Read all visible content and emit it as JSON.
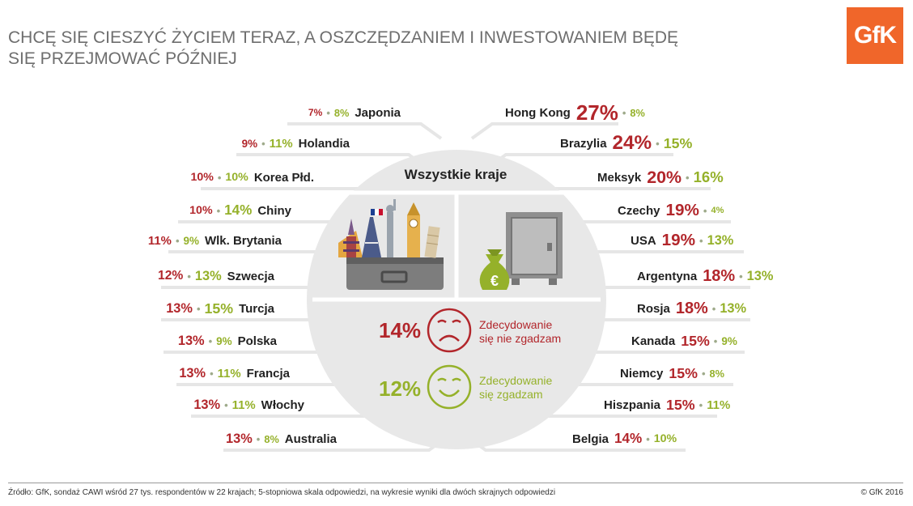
{
  "title_line1": "CHCĘ SIĘ CIESZYĆ ŻYCIEM TERAZ, A OSZCZĘDZANIEM I INWESTOWANIEM BĘDĘ",
  "title_line2": "SIĘ PRZEJMOWAĆ PÓŹNIEJ",
  "logo_text": "GfK",
  "center_title": "Wszystkie kraje",
  "legend": {
    "disagree_pct": "14%",
    "disagree_label_1": "Zdecydowanie",
    "disagree_label_2": "się nie zgadzam",
    "agree_pct": "12%",
    "agree_label_1": "Zdecydowanie",
    "agree_label_2": "się zgadzam"
  },
  "colors": {
    "disagree": "#b2262b",
    "agree": "#95b12a",
    "circle": "#e8e8e8"
  },
  "icons": [
    "suitcase-landmarks-icon",
    "safe-icon",
    "euro-money-bag-icon",
    "sad-face-icon",
    "happy-face-icon"
  ],
  "footer": {
    "source": "Źródło: GfK, sondaż CAWI wśród 27 tys. respondentów w 22 krajach; 5-stopniowa skala odpowiedzi, na wykresie wyniki dla dwóch skrajnych odpowiedzi",
    "copyright": "© GfK 2016"
  },
  "chart_data": {
    "type": "table",
    "columns": [
      "Zdecydowanie się nie zgadzam",
      "Zdecydowanie się zgadzam"
    ],
    "left": [
      {
        "country": "Japonia",
        "disagree": 7,
        "agree": 8
      },
      {
        "country": "Holandia",
        "disagree": 9,
        "agree": 11
      },
      {
        "country": "Korea Płd.",
        "disagree": 10,
        "agree": 10
      },
      {
        "country": "Chiny",
        "disagree": 10,
        "agree": 14
      },
      {
        "country": "Wlk. Brytania",
        "disagree": 11,
        "agree": 9
      },
      {
        "country": "Szwecja",
        "disagree": 12,
        "agree": 13
      },
      {
        "country": "Turcja",
        "disagree": 13,
        "agree": 15
      },
      {
        "country": "Polska",
        "disagree": 13,
        "agree": 9
      },
      {
        "country": "Francja",
        "disagree": 13,
        "agree": 11
      },
      {
        "country": "Włochy",
        "disagree": 13,
        "agree": 11
      },
      {
        "country": "Australia",
        "disagree": 13,
        "agree": 8
      }
    ],
    "right": [
      {
        "country": "Hong Kong",
        "disagree": 27,
        "agree": 8
      },
      {
        "country": "Brazylia",
        "disagree": 24,
        "agree": 15
      },
      {
        "country": "Meksyk",
        "disagree": 20,
        "agree": 16
      },
      {
        "country": "Czechy",
        "disagree": 19,
        "agree": 4
      },
      {
        "country": "USA",
        "disagree": 19,
        "agree": 13
      },
      {
        "country": "Argentyna",
        "disagree": 18,
        "agree": 13
      },
      {
        "country": "Rosja",
        "disagree": 18,
        "agree": 13
      },
      {
        "country": "Kanada",
        "disagree": 15,
        "agree": 9
      },
      {
        "country": "Niemcy",
        "disagree": 15,
        "agree": 8
      },
      {
        "country": "Hiszpania",
        "disagree": 15,
        "agree": 11
      },
      {
        "country": "Belgia",
        "disagree": 14,
        "agree": 10
      }
    ],
    "overall": {
      "disagree": 14,
      "agree": 12
    }
  }
}
